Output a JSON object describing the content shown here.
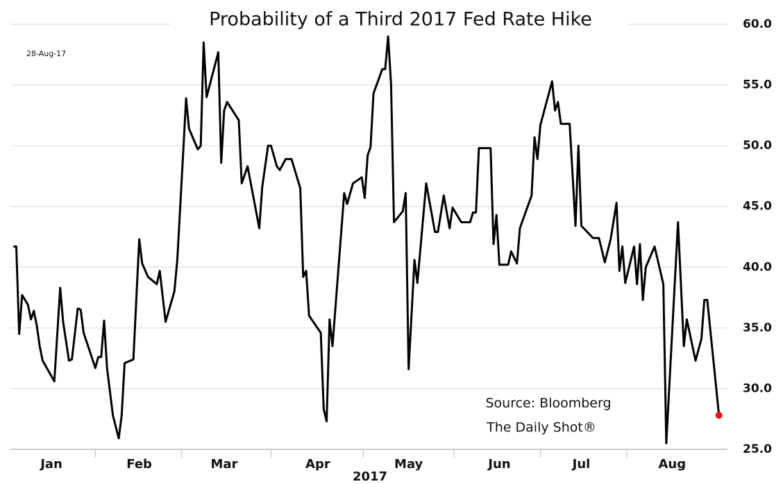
{
  "chart_data": {
    "type": "line",
    "title": "Probability of a Third 2017 Fed Rate Hike",
    "date_note": "28-Aug-17",
    "source": "Source: Bloomberg",
    "credit": "The Daily Shot®",
    "x_label": "2017",
    "xlim": [
      0,
      243
    ],
    "xticks": [
      {
        "value": 14,
        "label": "Jan"
      },
      {
        "value": 44,
        "label": "Feb"
      },
      {
        "value": 73,
        "label": "Mar"
      },
      {
        "value": 105,
        "label": "Apr"
      },
      {
        "value": 136,
        "label": "May"
      },
      {
        "value": 167,
        "label": "Jun"
      },
      {
        "value": 195,
        "label": "Jul"
      },
      {
        "value": 226,
        "label": "Aug"
      }
    ],
    "ylim": [
      25,
      60
    ],
    "yticks": [
      {
        "value": 25,
        "label": "25.0"
      },
      {
        "value": 30,
        "label": "30.0"
      },
      {
        "value": 35,
        "label": "35.0"
      },
      {
        "value": 40,
        "label": "40.0"
      },
      {
        "value": 45,
        "label": "45.0"
      },
      {
        "value": 50,
        "label": "50.0"
      },
      {
        "value": 55,
        "label": "55.0"
      },
      {
        "value": 60,
        "label": "60.0"
      }
    ],
    "grid": true,
    "last_point_color": "#e8141b",
    "series": [
      {
        "color": "#000000",
        "x": [
          1,
          2,
          3,
          4,
          6,
          7,
          8,
          9,
          10,
          11,
          15,
          17,
          18,
          20,
          21,
          23,
          24,
          25,
          29,
          30,
          31,
          32,
          33,
          35,
          37,
          38,
          39,
          42,
          44,
          45,
          47,
          50,
          51,
          53,
          56,
          57,
          59,
          60,
          61,
          64,
          65,
          66,
          67,
          71,
          72,
          73,
          74,
          78,
          79,
          81,
          85,
          86,
          88,
          89,
          91,
          92,
          94,
          96,
          99,
          100,
          101,
          102,
          106,
          107,
          108,
          109,
          110,
          114,
          115,
          117,
          120,
          121,
          122,
          123,
          124,
          127,
          128,
          129,
          130,
          131,
          134,
          135,
          136,
          138,
          139,
          142,
          145,
          146,
          148,
          150,
          151,
          154,
          157,
          158,
          159,
          160,
          164,
          165,
          166,
          167,
          170,
          171,
          173,
          174,
          178,
          179,
          180,
          181,
          185,
          186,
          187,
          188,
          191,
          193,
          194,
          195,
          199,
          201,
          203,
          205,
          207,
          208,
          209,
          210,
          213,
          214,
          215,
          216,
          217,
          220,
          223,
          224,
          228,
          230,
          231,
          234,
          236,
          237,
          238,
          242
        ],
        "values": [
          41.7,
          41.7,
          34.5,
          37.7,
          36.9,
          35.7,
          36.4,
          35.2,
          33.5,
          32.3,
          30.6,
          38.3,
          35.5,
          32.3,
          32.4,
          36.6,
          36.5,
          34.6,
          31.7,
          32.6,
          32.6,
          35.6,
          31.7,
          27.8,
          25.9,
          27.8,
          32.1,
          32.4,
          42.3,
          40.3,
          39.2,
          38.6,
          39.7,
          35.5,
          38.0,
          40.6,
          49.4,
          53.9,
          51.4,
          49.7,
          50.0,
          58.5,
          54.0,
          57.7,
          48.6,
          52.9,
          53.6,
          52.1,
          46.9,
          48.3,
          43.2,
          46.6,
          50.0,
          50.0,
          48.3,
          48.0,
          48.9,
          48.9,
          46.5,
          39.2,
          39.7,
          36.0,
          34.6,
          28.3,
          27.3,
          35.7,
          33.5,
          46.1,
          45.2,
          46.9,
          47.4,
          45.7,
          49.2,
          49.9,
          54.3,
          56.3,
          56.3,
          59.0,
          55.1,
          43.7,
          44.6,
          46.1,
          31.6,
          40.6,
          38.7,
          46.9,
          42.9,
          42.9,
          45.9,
          43.2,
          44.9,
          43.7,
          43.7,
          44.5,
          44.5,
          49.8,
          49.8,
          41.9,
          44.3,
          40.2,
          40.2,
          41.3,
          40.3,
          43.2,
          45.9,
          50.7,
          48.9,
          51.7,
          55.3,
          52.9,
          53.6,
          51.8,
          51.8,
          43.4,
          50.0,
          43.4,
          42.4,
          42.4,
          40.4,
          42.3,
          45.3,
          39.7,
          41.7,
          38.7,
          41.7,
          38.6,
          41.9,
          37.3,
          40.0,
          41.7,
          38.6,
          25.5,
          43.7,
          33.5,
          35.7,
          32.3,
          34.1,
          37.3,
          37.3,
          27.8
        ]
      }
    ]
  }
}
